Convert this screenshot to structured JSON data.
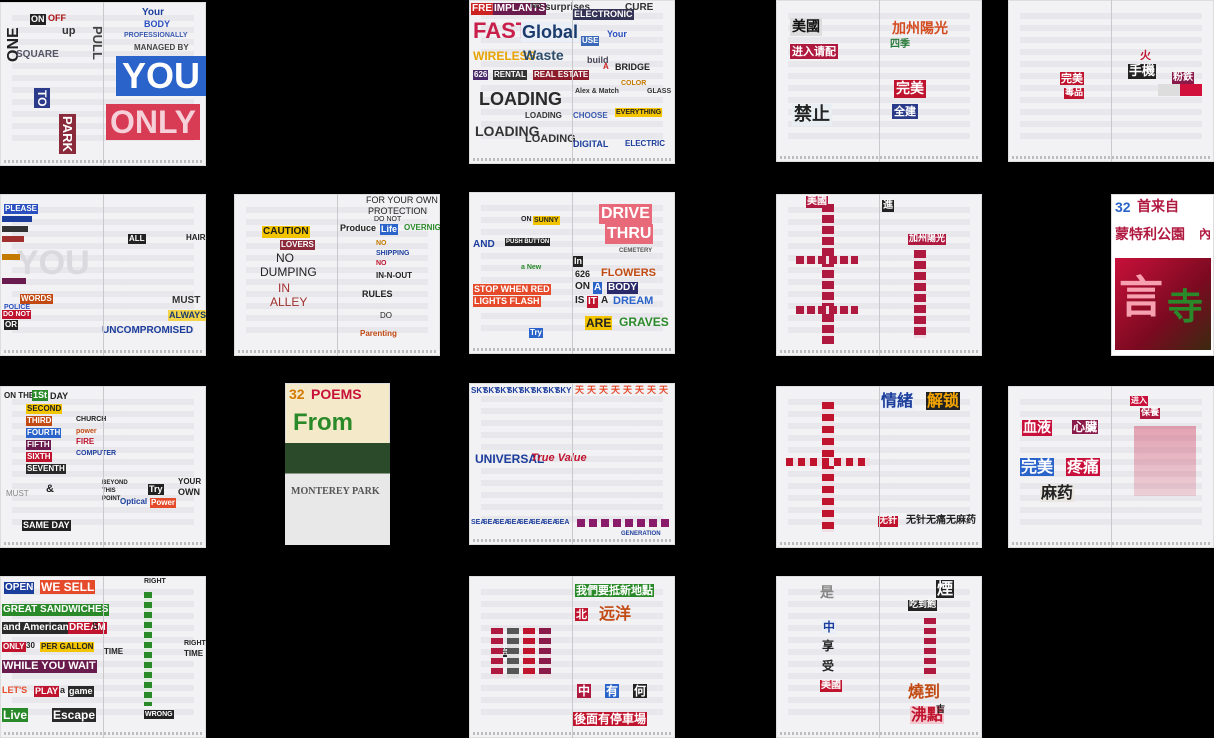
{
  "zines": [
    {
      "id": "z1",
      "words": [
        "ONE",
        "ON",
        "OFF",
        "up",
        "PULL",
        "TO",
        "SQUARE",
        "PARK",
        "Your",
        "BODY",
        "PROFESSIONALLY",
        "MANAGED BY",
        "YOU",
        "ONLY"
      ]
    },
    {
      "id": "z2",
      "words": [
        "FREE",
        "IMPLANTS",
        "NO",
        "surprises",
        "ELECTRONIC",
        "CURE",
        "FAST",
        "Global",
        "WIRELESS",
        "Waste",
        "USE",
        "Your",
        "build",
        "A",
        "BRIDGE",
        "626",
        "RENTAL",
        "REAL ESTATE",
        "LOADING",
        "LOADING",
        "LOADING",
        "CHOOSE",
        "EVERYTHING",
        "COLOR",
        "GLASS",
        "DIGITAL",
        "ELECTRIC",
        "LOADING",
        "Alex & Match"
      ]
    },
    {
      "id": "z3",
      "words": [
        "美國",
        "进入请配",
        "禁止",
        "加州陽光",
        "四季",
        "完美",
        "全建"
      ]
    },
    {
      "id": "z4",
      "words": [
        "完美",
        "手機",
        "火",
        "粉鉄",
        "毒品"
      ]
    },
    {
      "id": "z5",
      "words": [
        "PLEASE",
        "YOU",
        "ALL",
        "HAIR",
        "MUST",
        "ALWAYS",
        "UNCOMPROMISED",
        "DO NOT",
        "OR",
        "WORDS",
        "POLICE"
      ]
    },
    {
      "id": "z6",
      "words": [
        "CAUTION",
        "LOVERS",
        "NO",
        "DUMPING",
        "IN",
        "ALLEY",
        "FOR YOUR OWN",
        "PROTECTION",
        "DO NOT",
        "Produce",
        "Life",
        "OVERNIGHT",
        "NO",
        "SHIPPING",
        "NO",
        "IN-N-OUT",
        "RULES",
        "DO",
        "Parenting"
      ]
    },
    {
      "id": "z7",
      "words": [
        "ON",
        "SUNNY",
        "AND",
        "PUSH BUTTON",
        "a New",
        "STOP WHEN RED",
        "LIGHTS FLASH",
        "Try",
        "DRIVE",
        "THRU",
        "CEMETERY",
        "In",
        "626",
        "FLOWERS",
        "ON",
        "A",
        "BODY",
        "IS",
        "IT",
        "A",
        "DREAM",
        "ARE",
        "GRAVES"
      ]
    },
    {
      "id": "z8",
      "words": [
        "美國",
        "進",
        "加州陽光"
      ]
    },
    {
      "id": "z9",
      "words": [
        "32",
        "首来自",
        "蒙特利公園",
        "內",
        "言",
        "寺"
      ]
    },
    {
      "id": "z10",
      "words": [
        "ON THE",
        "1St",
        "DAY",
        "SECOND",
        "THIRD",
        "FOURTH",
        "FIFTH",
        "SIXTH",
        "SEVENTH",
        "CHURCH",
        "power",
        "FIRE",
        "COMPUTER",
        "&",
        "MUST",
        "BEYOND",
        "THIS",
        "POINT",
        "Try",
        "YOUR",
        "OWN",
        "Optical",
        "Power",
        "SAME DAY"
      ]
    },
    {
      "id": "z11",
      "words": [
        "32",
        "POEMS",
        "From",
        "MONTEREY PARK"
      ]
    },
    {
      "id": "z12",
      "words": [
        "SKY",
        "SKY",
        "SKY",
        "SKY",
        "SKY",
        "SKY",
        "SKY",
        "SKY",
        "天",
        "天",
        "天",
        "天",
        "天",
        "天",
        "天",
        "天",
        "UNIVERSAL",
        "True Value",
        "SEA",
        "SEA",
        "SEA",
        "SEA",
        "SEA",
        "SEA",
        "SEA",
        "SEA",
        "GENERATION"
      ]
    },
    {
      "id": "z13",
      "words": [
        "情緒",
        "解锁",
        "无针",
        "无针无痛无麻药"
      ]
    },
    {
      "id": "z14",
      "words": [
        "血液",
        "心臟",
        "完美",
        "疼痛",
        "麻药",
        "进入",
        "保養"
      ]
    },
    {
      "id": "z15",
      "words": [
        "OPEN",
        "WE SELL",
        "GREAT SANDWICHES",
        "and American",
        "DREAM",
        "S",
        "ONLY",
        "30",
        "PER GALLON",
        "WHILE YOU WAIT",
        "LET'S",
        "PLAY",
        "a",
        "game",
        "Live",
        "Escape",
        "RIGHT",
        "TIME",
        "RIGHT",
        "TIME",
        "WRONG"
      ]
    },
    {
      "id": "z16",
      "words": [
        "我們要抵新地點",
        "北",
        "远洋",
        "开启",
        "中",
        "有",
        "何",
        "後面有停車場"
      ]
    },
    {
      "id": "z17",
      "words": [
        "是",
        "煙",
        "吃到飽",
        "中",
        "享",
        "受",
        "美國",
        "燒到",
        "沸點",
        "吉"
      ]
    }
  ]
}
